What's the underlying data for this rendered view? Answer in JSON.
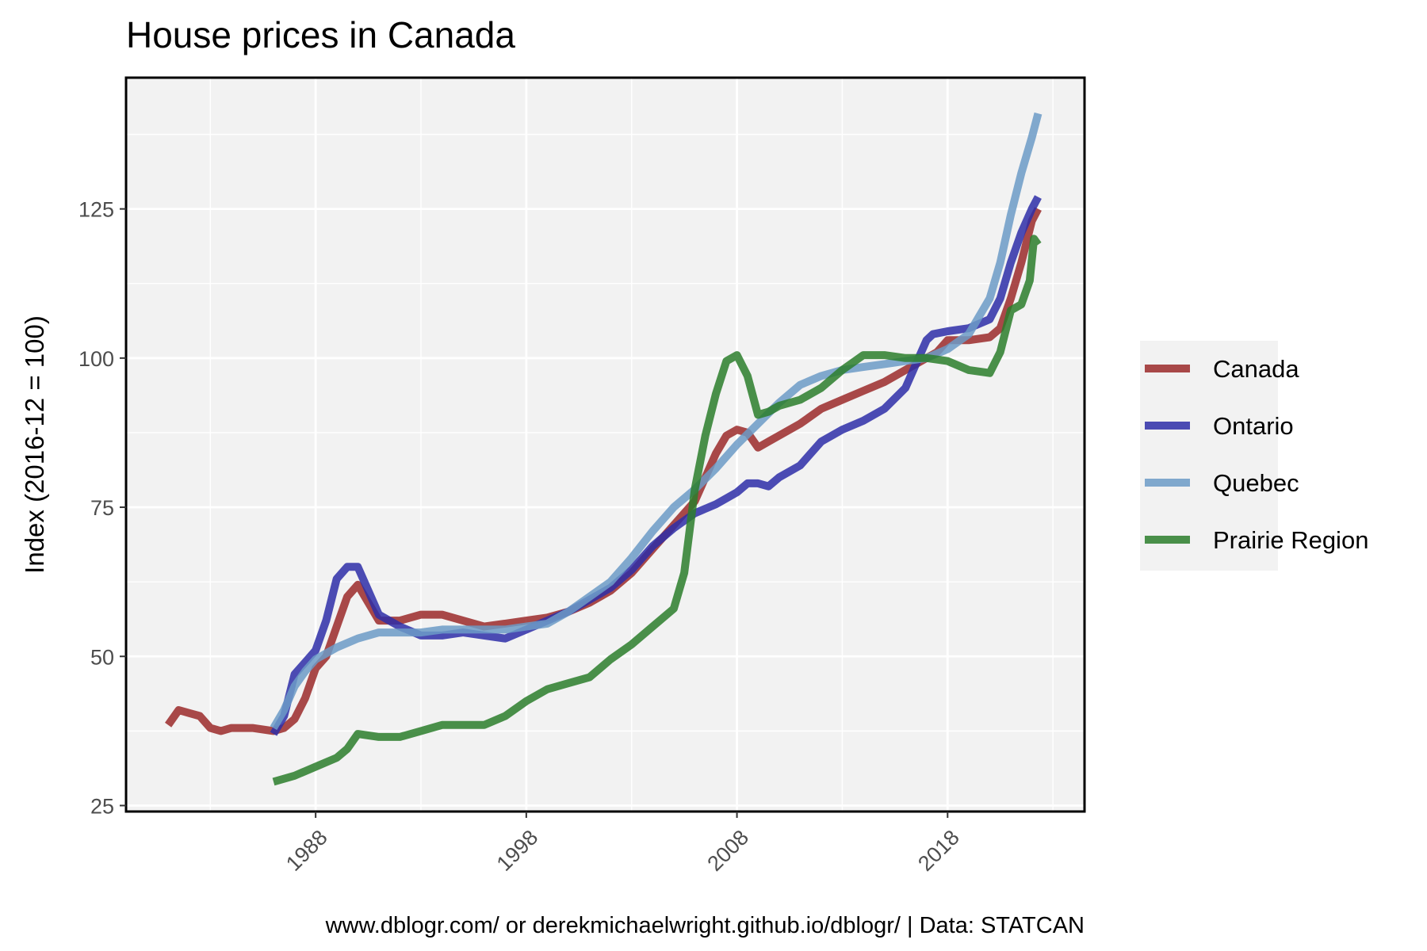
{
  "chart_data": {
    "type": "line",
    "title": "House prices in Canada",
    "ylabel": "Index (2016-12 = 100)",
    "xlabel": "",
    "caption": "www.dblogr.com/ or derekmichaelwright.github.io/dblogr/ | Data: STATCAN",
    "xlim": [
      1979,
      2024.5
    ],
    "ylim": [
      24,
      147
    ],
    "x_ticks": [
      1988,
      1998,
      2008,
      2018
    ],
    "y_ticks": [
      25,
      50,
      75,
      100,
      125
    ],
    "grid": true,
    "legend_position": "right",
    "series": [
      {
        "name": "Canada",
        "color": "#9b2a2a",
        "x": [
          1981.0,
          1981.5,
          1982.0,
          1982.5,
          1983.0,
          1983.5,
          1984.0,
          1985.0,
          1986.0,
          1986.5,
          1987.0,
          1987.5,
          1988.0,
          1988.5,
          1989.0,
          1989.5,
          1990.0,
          1990.5,
          1991.0,
          1992.0,
          1993.0,
          1994.0,
          1995.0,
          1996.0,
          1997.0,
          1998.0,
          1999.0,
          2000.0,
          2001.0,
          2002.0,
          2003.0,
          2004.0,
          2005.0,
          2006.0,
          2006.5,
          2007.0,
          2007.5,
          2008.0,
          2008.5,
          2009.0,
          2009.5,
          2010.0,
          2011.0,
          2012.0,
          2013.0,
          2014.0,
          2015.0,
          2016.0,
          2017.0,
          2017.5,
          2018.0,
          2019.0,
          2020.0,
          2020.5,
          2021.0,
          2021.5,
          2022.0,
          2022.3
        ],
        "values": [
          38.5,
          41,
          40.5,
          40,
          38,
          37.5,
          38,
          38,
          37.5,
          38,
          39.5,
          43,
          48,
          50,
          55,
          60,
          62,
          59,
          56,
          56,
          57,
          57,
          56,
          55,
          55.5,
          56,
          56.5,
          57.5,
          59,
          61,
          64,
          68,
          72,
          76,
          80,
          84,
          87,
          88,
          87.5,
          85,
          86,
          87,
          89,
          91.5,
          93,
          94.5,
          96,
          98,
          100,
          101,
          103,
          103,
          103.5,
          105,
          110,
          116,
          123,
          125
        ]
      },
      {
        "name": "Ontario",
        "color": "#2e2ea8",
        "x": [
          1986.0,
          1986.5,
          1987.0,
          1987.5,
          1988.0,
          1988.5,
          1989.0,
          1989.5,
          1990.0,
          1990.5,
          1991.0,
          1991.5,
          1992.0,
          1993.0,
          1994.0,
          1995.0,
          1996.0,
          1997.0,
          1998.0,
          1999.0,
          2000.0,
          2001.0,
          2002.0,
          2003.0,
          2004.0,
          2005.0,
          2006.0,
          2007.0,
          2008.0,
          2008.5,
          2009.0,
          2009.5,
          2010.0,
          2011.0,
          2012.0,
          2013.0,
          2014.0,
          2015.0,
          2016.0,
          2016.5,
          2017.0,
          2017.3,
          2018.0,
          2019.0,
          2020.0,
          2020.5,
          2021.0,
          2021.5,
          2022.0,
          2022.3
        ],
        "values": [
          37,
          40,
          47,
          49,
          51,
          56,
          63,
          65,
          65,
          61,
          57,
          56,
          55,
          53.5,
          53.5,
          54,
          53.5,
          53,
          54.5,
          56,
          57.5,
          59.5,
          61.5,
          64.5,
          68.5,
          71.5,
          74,
          75.5,
          77.5,
          79,
          79,
          78.5,
          80,
          82,
          86,
          88,
          89.5,
          91.5,
          95,
          99,
          103,
          104,
          104.5,
          105,
          106.5,
          110,
          116,
          121,
          125,
          127
        ]
      },
      {
        "name": "Quebec",
        "color": "#6c9bc7",
        "x": [
          1986.0,
          1986.5,
          1987.0,
          1987.5,
          1988.0,
          1989.0,
          1990.0,
          1991.0,
          1992.0,
          1993.0,
          1994.0,
          1995.0,
          1996.0,
          1997.0,
          1998.0,
          1999.0,
          2000.0,
          2001.0,
          2002.0,
          2003.0,
          2004.0,
          2005.0,
          2006.0,
          2007.0,
          2008.0,
          2009.0,
          2010.0,
          2011.0,
          2012.0,
          2013.0,
          2014.0,
          2015.0,
          2016.0,
          2017.0,
          2018.0,
          2019.0,
          2019.5,
          2020.0,
          2020.5,
          2021.0,
          2021.5,
          2022.0,
          2022.3
        ],
        "values": [
          38,
          41,
          45,
          47.5,
          49.5,
          51.5,
          53,
          54,
          54,
          54,
          54.5,
          54.5,
          54.5,
          54.5,
          55,
          55.5,
          57.5,
          60,
          62.5,
          66.5,
          71,
          75,
          78,
          81.5,
          85.5,
          89,
          92.5,
          95.5,
          97,
          98,
          98.5,
          99,
          99.5,
          100,
          101.5,
          104,
          107,
          110,
          116,
          124,
          131,
          137,
          141
        ]
      },
      {
        "name": "Prairie Region",
        "color": "#2b7e2b",
        "x": [
          1986.0,
          1987.0,
          1988.0,
          1989.0,
          1989.5,
          1990.0,
          1991.0,
          1992.0,
          1993.0,
          1994.0,
          1995.0,
          1996.0,
          1997.0,
          1998.0,
          1999.0,
          2000.0,
          2001.0,
          2002.0,
          2003.0,
          2004.0,
          2005.0,
          2005.5,
          2006.0,
          2006.5,
          2007.0,
          2007.5,
          2008.0,
          2008.5,
          2009.0,
          2009.5,
          2010.0,
          2011.0,
          2012.0,
          2013.0,
          2014.0,
          2015.0,
          2016.0,
          2017.0,
          2018.0,
          2019.0,
          2020.0,
          2020.5,
          2021.0,
          2021.5,
          2021.9,
          2022.1,
          2022.3
        ],
        "values": [
          29,
          30,
          31.5,
          33,
          34.5,
          37,
          36.5,
          36.5,
          37.5,
          38.5,
          38.5,
          38.5,
          40,
          42.5,
          44.5,
          45.5,
          46.5,
          49.5,
          52,
          55,
          58,
          64,
          78,
          87,
          94,
          99.5,
          100.5,
          97,
          90.5,
          91,
          92,
          93,
          95,
          98,
          100.5,
          100.5,
          100,
          100,
          99.5,
          98,
          97.5,
          101,
          108,
          109,
          113,
          120,
          119
        ]
      }
    ]
  }
}
